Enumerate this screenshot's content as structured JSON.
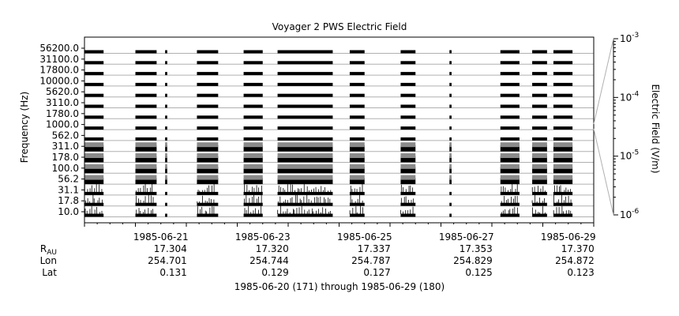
{
  "chart_data": {
    "type": "heatmap",
    "title": "Voyager 2 PWS Electric Field",
    "ylabel": "Frequency (Hz)",
    "colorbar_label": "Electric Field (V/m)",
    "colorbar_scale": "log",
    "colorbar_range": [
      "1e-6",
      "1e-3"
    ],
    "colorbar_ticks": [
      {
        "base": "10",
        "exp": "-3",
        "value": 0.001
      },
      {
        "base": "10",
        "exp": "-4",
        "value": 0.0001
      },
      {
        "base": "10",
        "exp": "-5",
        "value": 1e-05
      },
      {
        "base": "10",
        "exp": "-6",
        "value": 1e-06
      }
    ],
    "channels": [
      "10.0",
      "17.8",
      "31.1",
      "56.2",
      "100.0",
      "178.0",
      "311.0",
      "562.0",
      "1000.0",
      "1780.0",
      "3110.0",
      "5620.0",
      "10000.0",
      "17800.0",
      "31100.0",
      "56200.0"
    ],
    "x_date_ticks": [
      "1985-06-21",
      "1985-06-23",
      "1985-06-25",
      "1985-06-27",
      "1985-06-29"
    ],
    "x_range": [
      "1985-06-20",
      "1985-06-30"
    ],
    "ephemeris": {
      "rows": [
        {
          "label_main": "R",
          "label_sub": "AU",
          "values": [
            "17.304",
            "17.320",
            "17.337",
            "17.353",
            "17.370"
          ]
        },
        {
          "label_main": "Lon",
          "label_sub": "",
          "values": [
            "254.701",
            "254.744",
            "254.787",
            "254.829",
            "254.872"
          ]
        },
        {
          "label_main": "Lat",
          "label_sub": "",
          "values": [
            "0.131",
            "0.129",
            "0.127",
            "0.125",
            "0.123"
          ]
        }
      ]
    },
    "footer": "1985-06-20 (171) through 1985-06-29 (180)",
    "data_segments": [
      {
        "start": "1985-06-20T00:00",
        "end": "1985-06-20T09:00"
      },
      {
        "start": "1985-06-21T00:00",
        "end": "1985-06-21T10:00"
      },
      {
        "start": "1985-06-21T14:00",
        "end": "1985-06-21T15:00"
      },
      {
        "start": "1985-06-22T05:00",
        "end": "1985-06-22T15:00"
      },
      {
        "start": "1985-06-23T03:00",
        "end": "1985-06-23T12:00"
      },
      {
        "start": "1985-06-23T19:00",
        "end": "1985-06-24T21:00"
      },
      {
        "start": "1985-06-25T05:00",
        "end": "1985-06-25T12:00"
      },
      {
        "start": "1985-06-26T05:00",
        "end": "1985-06-26T12:00"
      },
      {
        "start": "1985-06-27T04:00",
        "end": "1985-06-27T05:00"
      },
      {
        "start": "1985-06-28T04:00",
        "end": "1985-06-28T13:00"
      },
      {
        "start": "1985-06-28T19:00",
        "end": "1985-06-29T02:00"
      },
      {
        "start": "1985-06-29T05:00",
        "end": "1985-06-29T14:00"
      }
    ]
  }
}
